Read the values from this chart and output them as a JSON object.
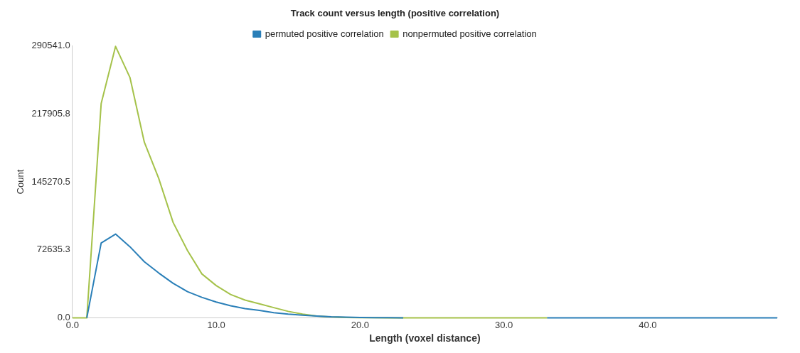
{
  "chart_data": {
    "type": "line",
    "title": "Track count versus length (positive correlation)",
    "xlabel": "Length (voxel distance)",
    "ylabel": "Count",
    "x": [
      0,
      1,
      2,
      3,
      4,
      5,
      6,
      7,
      8,
      9,
      10,
      11,
      12,
      13,
      14,
      15,
      16,
      17,
      18,
      19,
      20,
      21,
      22,
      23,
      24,
      25,
      26,
      27,
      28,
      29,
      30,
      31,
      32,
      33,
      34,
      35,
      36,
      37,
      38,
      39,
      40,
      41,
      42,
      43,
      44,
      45,
      46,
      47,
      48,
      49
    ],
    "series": [
      {
        "name": "permuted positive correlation",
        "color": "#2a7fb8",
        "values": [
          null,
          0,
          80000,
          89500,
          76000,
          60000,
          48000,
          37000,
          28000,
          22000,
          17000,
          13000,
          10000,
          8000,
          5500,
          4000,
          3000,
          2000,
          1200,
          800,
          500,
          300,
          200,
          100,
          null,
          null,
          null,
          null,
          null,
          null,
          null,
          null,
          null,
          0,
          0,
          0,
          0,
          0,
          0,
          0,
          0,
          0,
          0,
          0,
          0,
          0,
          0,
          0,
          0,
          0
        ]
      },
      {
        "name": "nonpermuted positive correlation",
        "color": "#a5c24a",
        "values": [
          0,
          0,
          229000,
          290000,
          256800,
          187700,
          149000,
          102000,
          72000,
          47000,
          34500,
          25000,
          19000,
          15000,
          11000,
          7000,
          4000,
          2000,
          1000,
          500,
          300,
          200,
          100,
          0,
          0,
          0,
          0,
          0,
          0,
          0,
          0,
          0,
          0,
          0,
          null,
          null,
          null,
          null,
          null,
          null,
          null,
          null,
          null,
          null,
          null,
          null,
          null,
          null,
          null,
          null
        ]
      }
    ],
    "xlim": [
      0,
      49
    ],
    "ylim": [
      0,
      290541
    ],
    "xticks": [
      {
        "value": 0,
        "label": "0.0"
      },
      {
        "value": 10,
        "label": "10.0"
      },
      {
        "value": 20,
        "label": "20.0"
      },
      {
        "value": 30,
        "label": "30.0"
      },
      {
        "value": 40,
        "label": "40.0"
      }
    ],
    "yticks": [
      {
        "value": 0,
        "label": "0.0"
      },
      {
        "value": 72635.3,
        "label": "72635.3"
      },
      {
        "value": 145270.5,
        "label": "145270.5"
      },
      {
        "value": 217905.8,
        "label": "217905.8"
      },
      {
        "value": 290541.0,
        "label": "290541.0"
      }
    ],
    "grid": false,
    "legend": "top",
    "marker": "none",
    "line_style": "solid"
  }
}
